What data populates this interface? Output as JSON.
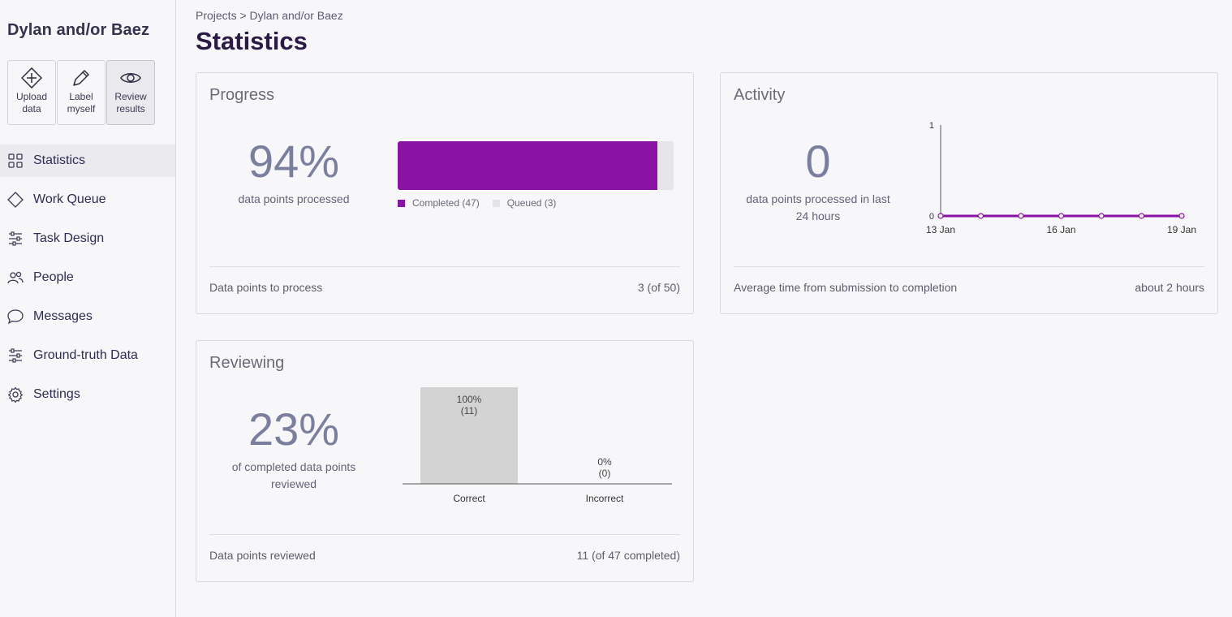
{
  "project": {
    "title": "Dylan and/or Baez"
  },
  "actions": [
    {
      "label1": "Upload",
      "label2": "data",
      "icon": "upload-icon"
    },
    {
      "label1": "Label",
      "label2": "myself",
      "icon": "pencil-icon"
    },
    {
      "label1": "Review",
      "label2": "results",
      "icon": "eye-icon"
    }
  ],
  "nav": [
    {
      "label": "Statistics",
      "icon": "grid-icon",
      "active": true
    },
    {
      "label": "Work Queue",
      "icon": "diamond-icon"
    },
    {
      "label": "Task Design",
      "icon": "sliders-icon"
    },
    {
      "label": "People",
      "icon": "people-icon"
    },
    {
      "label": "Messages",
      "icon": "chat-icon"
    },
    {
      "label": "Ground-truth Data",
      "icon": "sliders-icon"
    },
    {
      "label": "Settings",
      "icon": "gear-icon"
    }
  ],
  "breadcrumb": "Projects > Dylan and/or Baez",
  "page_title": "Statistics",
  "progress": {
    "title": "Progress",
    "percent": "94%",
    "subtitle": "data points processed",
    "fraction": 0.94,
    "legend_completed": "Completed (47)",
    "legend_queued": "Queued (3)",
    "footer_label": "Data points to process",
    "footer_value": "3 (of 50)",
    "colors": {
      "completed": "#8a12a4",
      "queued": "#e6e6e8"
    }
  },
  "activity": {
    "title": "Activity",
    "count": "0",
    "subtitle_line1": "data points processed in last",
    "subtitle_line2": "24 hours",
    "footer_label": "Average time from submission to completion",
    "footer_value": "about 2 hours"
  },
  "reviewing": {
    "title": "Reviewing",
    "percent": "23%",
    "subtitle_line1": "of completed data points",
    "subtitle_line2": "reviewed",
    "footer_label": "Data points reviewed",
    "footer_value": "11 (of 47 completed)"
  },
  "chart_data": [
    {
      "type": "line",
      "x": [
        "13 Jan",
        "14 Jan",
        "15 Jan",
        "16 Jan",
        "17 Jan",
        "18 Jan",
        "19 Jan"
      ],
      "x_tick_labels": [
        "13 Jan",
        "16 Jan",
        "19 Jan"
      ],
      "values": [
        0,
        0,
        0,
        0,
        0,
        0,
        0
      ],
      "ylim": [
        0,
        1
      ],
      "y_tick_labels": [
        "0",
        "1"
      ],
      "color": "#8a12a4"
    },
    {
      "type": "bar",
      "categories": [
        "Correct",
        "Incorrect"
      ],
      "values": [
        11,
        0
      ],
      "percent_labels": [
        "100%",
        "0%"
      ],
      "count_labels": [
        "(11)",
        "(0)"
      ],
      "ylim": [
        0,
        11
      ],
      "color": "#d3d3d3"
    }
  ]
}
